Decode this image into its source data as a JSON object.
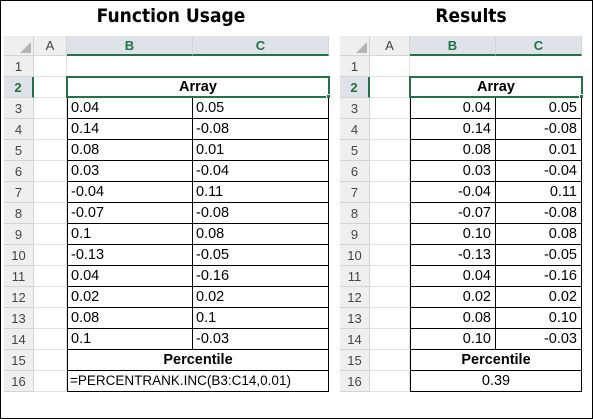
{
  "titles": {
    "left": "Function Usage",
    "right": "Results"
  },
  "columns": [
    "A",
    "B",
    "C"
  ],
  "rows": [
    "1",
    "2",
    "3",
    "4",
    "5",
    "6",
    "7",
    "8",
    "9",
    "10",
    "11",
    "12",
    "13",
    "14",
    "15",
    "16"
  ],
  "labels": {
    "array": "Array",
    "percentile": "Percentile"
  },
  "usage": {
    "array_rows": [
      [
        "0.04",
        "0.05"
      ],
      [
        "0.14",
        "-0.08"
      ],
      [
        "0.08",
        "0.01"
      ],
      [
        "0.03",
        "-0.04"
      ],
      [
        "-0.04",
        "0.11"
      ],
      [
        "-0.07",
        "-0.08"
      ],
      [
        "0.1",
        "0.08"
      ],
      [
        "-0.13",
        "-0.05"
      ],
      [
        "0.04",
        "-0.16"
      ],
      [
        "0.02",
        "0.02"
      ],
      [
        "0.08",
        "0.1"
      ],
      [
        "0.1",
        "-0.03"
      ]
    ],
    "formula": "=PERCENTRANK.INC(B3:C14,0.01)"
  },
  "results": {
    "array_rows": [
      [
        "0.04",
        "0.05"
      ],
      [
        "0.14",
        "-0.08"
      ],
      [
        "0.08",
        "0.01"
      ],
      [
        "0.03",
        "-0.04"
      ],
      [
        "-0.04",
        "0.11"
      ],
      [
        "-0.07",
        "-0.08"
      ],
      [
        "0.10",
        "0.08"
      ],
      [
        "-0.13",
        "-0.05"
      ],
      [
        "0.04",
        "-0.16"
      ],
      [
        "0.02",
        "0.02"
      ],
      [
        "0.08",
        "0.10"
      ],
      [
        "0.10",
        "-0.03"
      ]
    ],
    "value": "0.39"
  },
  "colors": {
    "selection": "#217346",
    "header_bg": "#efefef"
  }
}
